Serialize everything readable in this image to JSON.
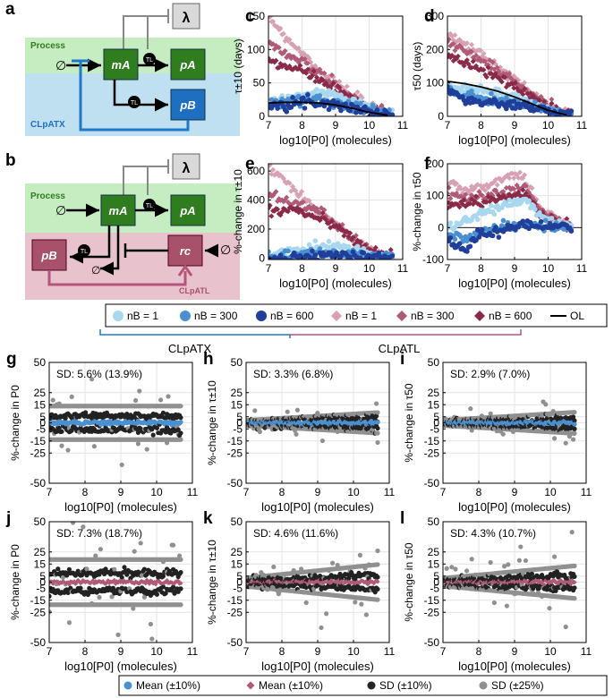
{
  "colors": {
    "process_bg": "#c6ecc2",
    "cltx_bg": "#bfe0f0",
    "cltl_bg": "#e8c3cd",
    "green_node": "#2f7d1f",
    "blue_node": "#1f6fc0",
    "pink_node": "#a8516a",
    "light_blue": "#a8d8f0",
    "mid_blue": "#4a90d0",
    "dark_blue": "#1f3f9a",
    "light_pink": "#d8a0b4",
    "mid_pink": "#b05a78",
    "dark_pink": "#8a2a48",
    "gray": "#888888",
    "black": "#111111",
    "blue_line": "#1f78c8",
    "pink_line": "#b5557a"
  },
  "diagram_a": {
    "panel": "a",
    "process_label": "Process",
    "group_label": "CLpATX",
    "input_label": "∅",
    "mA": "mA",
    "pA": "pA",
    "pB": "pB",
    "tl": "TL",
    "lambda": "λ"
  },
  "diagram_b": {
    "panel": "b",
    "process_label": "Process",
    "group_label": "CLpATL",
    "input_label": "∅",
    "mA": "mA",
    "pA": "pA",
    "pB": "pB",
    "rc": "rc",
    "tl": "TL",
    "lambda": "λ"
  },
  "legend_top": {
    "items": [
      "nB = 1",
      "nB = 300",
      "nB = 600",
      "nB = 1",
      "nB = 300",
      "nB = 600",
      "OL"
    ],
    "group_tx": "CLpATX",
    "group_tl": "CLpATL"
  },
  "legend_bottom": {
    "items": [
      "Mean (±10%)",
      "Mean (±10%)",
      "SD (±10%)",
      "SD (±25%)"
    ]
  },
  "chart_data": [
    {
      "panel": "c",
      "type": "scatter",
      "xlabel": "log10[P0] (molecules)",
      "ylabel": "τ±10 (days)",
      "xlim": [
        7,
        11
      ],
      "ylim": [
        0,
        150
      ],
      "xticks": [
        7,
        8,
        9,
        10,
        11
      ],
      "yticks": [
        0,
        50,
        100,
        150
      ],
      "series": [
        {
          "name": "nB = 1 (TL)",
          "x": [
            7,
            7.5,
            8,
            8.5,
            9,
            9.5,
            10,
            10.5
          ],
          "y": [
            150,
            120,
            95,
            70,
            50,
            30,
            15,
            5
          ]
        },
        {
          "name": "nB = 300 (TL)",
          "x": [
            7,
            7.5,
            8,
            8.5,
            9,
            9.5,
            10,
            10.5
          ],
          "y": [
            110,
            95,
            80,
            65,
            45,
            28,
            14,
            5
          ]
        },
        {
          "name": "nB = 600 (TL)",
          "x": [
            7,
            7.5,
            8,
            8.5,
            9,
            9.5,
            10,
            10.5
          ],
          "y": [
            85,
            75,
            68,
            55,
            40,
            25,
            12,
            4
          ]
        },
        {
          "name": "nB = 1 (TX)",
          "x": [
            7,
            7.5,
            8,
            8.5,
            9,
            9.5,
            10,
            10.5
          ],
          "y": [
            20,
            25,
            32,
            35,
            33,
            25,
            12,
            4
          ]
        },
        {
          "name": "nB = 300 (TX)",
          "x": [
            7,
            7.5,
            8,
            8.5,
            9,
            9.5,
            10,
            10.5
          ],
          "y": [
            20,
            22,
            24,
            25,
            22,
            16,
            9,
            3
          ]
        },
        {
          "name": "nB = 600 (TX)",
          "x": [
            7,
            7.5,
            8,
            8.5,
            9,
            9.5,
            10,
            10.5
          ],
          "y": [
            18,
            20,
            21,
            21,
            18,
            13,
            7,
            2
          ]
        },
        {
          "name": "OL",
          "x": [
            7,
            7.5,
            8,
            8.5,
            9,
            9.5,
            10,
            10.5
          ],
          "y": [
            20,
            21,
            21,
            20,
            17,
            12,
            6,
            2
          ]
        }
      ]
    },
    {
      "panel": "d",
      "type": "scatter",
      "xlabel": "log10[P0] (molecules)",
      "ylabel": "τ50 (days)",
      "xlim": [
        7,
        11
      ],
      "ylim": [
        0,
        300
      ],
      "xticks": [
        7,
        8,
        9,
        10,
        11
      ],
      "yticks": [
        0,
        100,
        200,
        300
      ],
      "series": [
        {
          "name": "nB = 1 (TL)",
          "x": [
            7,
            7.5,
            8,
            8.5,
            9,
            9.5,
            10,
            10.5
          ],
          "y": [
            250,
            215,
            185,
            150,
            110,
            70,
            35,
            10
          ]
        },
        {
          "name": "nB = 300 (TL)",
          "x": [
            7,
            7.5,
            8,
            8.5,
            9,
            9.5,
            10,
            10.5
          ],
          "y": [
            225,
            195,
            170,
            138,
            102,
            65,
            32,
            9
          ]
        },
        {
          "name": "nB = 600 (TL)",
          "x": [
            7,
            7.5,
            8,
            8.5,
            9,
            9.5,
            10,
            10.5
          ],
          "y": [
            180,
            160,
            140,
            115,
            88,
            57,
            28,
            8
          ]
        },
        {
          "name": "nB = 1 (TX)",
          "x": [
            7,
            7.5,
            8,
            8.5,
            9,
            9.5,
            10,
            10.5
          ],
          "y": [
            90,
            85,
            78,
            70,
            58,
            40,
            20,
            6
          ]
        },
        {
          "name": "nB = 300 (TX)",
          "x": [
            7,
            7.5,
            8,
            8.5,
            9,
            9.5,
            10,
            10.5
          ],
          "y": [
            75,
            65,
            55,
            48,
            42,
            32,
            16,
            5
          ]
        },
        {
          "name": "nB = 600 (TX)",
          "x": [
            7,
            7.5,
            8,
            8.5,
            9,
            9.5,
            10,
            10.5
          ],
          "y": [
            80,
            55,
            40,
            36,
            35,
            28,
            14,
            4
          ]
        },
        {
          "name": "OL",
          "x": [
            7,
            7.5,
            8,
            8.5,
            9,
            9.5,
            10,
            10.5
          ],
          "y": [
            105,
            98,
            88,
            75,
            58,
            38,
            18,
            5
          ]
        }
      ]
    },
    {
      "panel": "e",
      "type": "scatter",
      "xlabel": "log10[P0] (molecules)",
      "ylabel": "%-change in τ±10",
      "xlim": [
        7,
        11
      ],
      "ylim": [
        -10,
        650
      ],
      "xticks": [
        7,
        8,
        9,
        10,
        11
      ],
      "yticks": [
        0,
        200,
        400,
        600
      ],
      "series": [
        {
          "name": "nB = 1 (TL)",
          "x": [
            7,
            7.5,
            8,
            8.5,
            9,
            9.5,
            10,
            10.5
          ],
          "y": [
            640,
            520,
            420,
            320,
            230,
            140,
            60,
            10
          ]
        },
        {
          "name": "nB = 300 (TL)",
          "x": [
            7,
            7.5,
            8,
            8.5,
            9,
            9.5,
            10,
            10.5
          ],
          "y": [
            440,
            400,
            370,
            320,
            240,
            150,
            60,
            10
          ]
        },
        {
          "name": "nB = 600 (TL)",
          "x": [
            7,
            7.5,
            8,
            8.5,
            9,
            9.5,
            10,
            10.5
          ],
          "y": [
            330,
            330,
            320,
            280,
            220,
            140,
            55,
            10
          ]
        },
        {
          "name": "nB = 1 (TX)",
          "x": [
            7,
            7.5,
            8,
            8.5,
            9,
            9.5,
            10,
            10.5
          ],
          "y": [
            0,
            40,
            60,
            80,
            90,
            70,
            30,
            5
          ]
        },
        {
          "name": "nB = 300 (TX)",
          "x": [
            7,
            7.5,
            8,
            8.5,
            9,
            9.5,
            10,
            10.5
          ],
          "y": [
            0,
            10,
            25,
            30,
            35,
            30,
            15,
            3
          ]
        },
        {
          "name": "nB = 600 (TX)",
          "x": [
            7,
            7.5,
            8,
            8.5,
            9,
            9.5,
            10,
            10.5
          ],
          "y": [
            -5,
            0,
            5,
            10,
            15,
            15,
            8,
            2
          ]
        }
      ]
    },
    {
      "panel": "f",
      "type": "scatter",
      "xlabel": "log10[P0] (molecules)",
      "ylabel": "%-change in τ50",
      "xlim": [
        7,
        11
      ],
      "ylim": [
        -100,
        200
      ],
      "xticks": [
        7,
        8,
        9,
        10,
        11
      ],
      "yticks": [
        -100,
        0,
        100,
        200
      ],
      "series": [
        {
          "name": "nB = 1 (TL)",
          "x": [
            7,
            7.5,
            8,
            8.5,
            9,
            9.3,
            9.8,
            10.5
          ],
          "y": [
            140,
            120,
            125,
            140,
            165,
            150,
            60,
            10
          ]
        },
        {
          "name": "nB = 300 (TL)",
          "x": [
            7,
            7.5,
            8,
            8.5,
            9,
            9.3,
            9.8,
            10.5
          ],
          "y": [
            115,
            95,
            95,
            105,
            120,
            125,
            50,
            8
          ]
        },
        {
          "name": "nB = 600 (TL)",
          "x": [
            7,
            7.5,
            8,
            8.5,
            9,
            9.3,
            9.8,
            10.5
          ],
          "y": [
            70,
            75,
            80,
            90,
            100,
            110,
            45,
            6
          ]
        },
        {
          "name": "nB = 1 (TX)",
          "x": [
            7,
            7.5,
            8,
            8.5,
            9,
            9.3,
            9.8,
            10.5
          ],
          "y": [
            0,
            20,
            40,
            60,
            80,
            90,
            30,
            5
          ]
        },
        {
          "name": "nB = 300 (TX)",
          "x": [
            7,
            7.5,
            8,
            8.5,
            9,
            9.3,
            9.8,
            10.5
          ],
          "y": [
            -20,
            -40,
            -10,
            0,
            5,
            10,
            5,
            0
          ]
        },
        {
          "name": "nB = 600 (TX)",
          "x": [
            7,
            7.5,
            8,
            8.5,
            9,
            9.3,
            9.8,
            10.5
          ],
          "y": [
            -40,
            -70,
            -20,
            -10,
            0,
            5,
            5,
            0
          ]
        }
      ]
    },
    {
      "panel": "g",
      "type": "scatter",
      "annotation": "SD: 5.6% (13.9%)",
      "xlabel": "log10[P0] (molecules)",
      "ylabel": "%-change in P0",
      "xlim": [
        7,
        11
      ],
      "ylim": [
        -50,
        50
      ],
      "xticks": [
        7,
        8,
        9,
        10,
        11
      ],
      "yticks": [
        -50,
        -25,
        -15,
        -5,
        0,
        5,
        15,
        25,
        50
      ],
      "sd10": 5.6,
      "sd25": 13.9,
      "mean_color": "#4a90d0"
    },
    {
      "panel": "h",
      "type": "scatter",
      "annotation": "SD: 3.3% (6.8%)",
      "xlabel": "log10[P0] (molecules)",
      "ylabel": "%-change in τ±10",
      "xlim": [
        7,
        11
      ],
      "ylim": [
        -50,
        50
      ],
      "xticks": [
        7,
        8,
        9,
        10,
        11
      ],
      "yticks": [
        -50,
        -25,
        -15,
        -5,
        0,
        5,
        15,
        25,
        50
      ],
      "sd10": 3.3,
      "sd25": 6.8,
      "mean_color": "#4a90d0"
    },
    {
      "panel": "i",
      "type": "scatter",
      "annotation": "SD: 2.9% (7.0%)",
      "xlabel": "log10[P0] (molecules)",
      "ylabel": "%-change in τ50",
      "xlim": [
        7,
        11
      ],
      "ylim": [
        -50,
        50
      ],
      "xticks": [
        7,
        8,
        9,
        10,
        11
      ],
      "yticks": [
        -50,
        -25,
        -15,
        -5,
        0,
        5,
        15,
        25,
        50
      ],
      "sd10": 2.9,
      "sd25": 7.0,
      "mean_color": "#4a90d0"
    },
    {
      "panel": "j",
      "type": "scatter",
      "annotation": "SD: 7.3% (18.7%)",
      "xlabel": "log10[P0] (molecules)",
      "ylabel": "%-change in P0",
      "xlim": [
        7,
        11
      ],
      "ylim": [
        -50,
        50
      ],
      "xticks": [
        7,
        8,
        9,
        10,
        11
      ],
      "yticks": [
        -50,
        -25,
        -15,
        -5,
        0,
        5,
        15,
        25,
        50
      ],
      "sd10": 7.3,
      "sd25": 18.7,
      "mean_color": "#b05a78"
    },
    {
      "panel": "k",
      "type": "scatter",
      "annotation": "SD: 4.6% (11.6%)",
      "xlabel": "log10[P0] (molecules)",
      "ylabel": "%-change in τ±10",
      "xlim": [
        7,
        11
      ],
      "ylim": [
        -50,
        50
      ],
      "xticks": [
        7,
        8,
        9,
        10,
        11
      ],
      "yticks": [
        -50,
        -25,
        -15,
        -5,
        0,
        5,
        15,
        25,
        50
      ],
      "sd10": 4.6,
      "sd25": 11.6,
      "mean_color": "#b05a78"
    },
    {
      "panel": "l",
      "type": "scatter",
      "annotation": "SD: 4.3% (10.7%)",
      "xlabel": "log10[P0] (molecules)",
      "ylabel": "%-change in τ50",
      "xlim": [
        7,
        11
      ],
      "ylim": [
        -50,
        50
      ],
      "xticks": [
        7,
        8,
        9,
        10,
        11
      ],
      "yticks": [
        -50,
        -25,
        -15,
        -5,
        0,
        5,
        15,
        25,
        50
      ],
      "sd10": 4.3,
      "sd25": 10.7,
      "mean_color": "#b05a78"
    }
  ]
}
